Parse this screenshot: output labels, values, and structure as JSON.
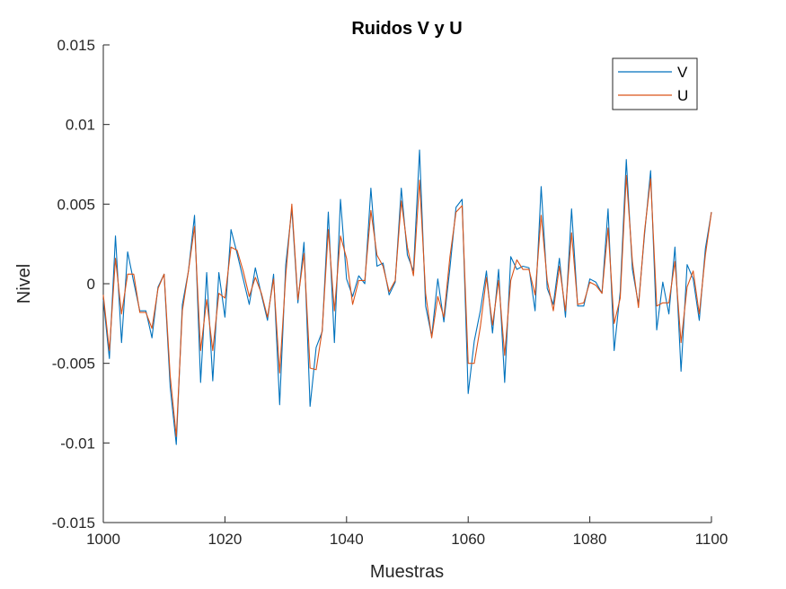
{
  "chart_data": {
    "type": "line",
    "title": "Ruidos V y U",
    "xlabel": "Muestras",
    "ylabel": "Nivel",
    "xlim": [
      1000,
      1100
    ],
    "ylim": [
      -0.015,
      0.015
    ],
    "xticks": [
      1000,
      1020,
      1040,
      1060,
      1080,
      1100
    ],
    "xtick_labels": [
      "1000",
      "1020",
      "1040",
      "1060",
      "1080",
      "1100"
    ],
    "yticks": [
      -0.015,
      -0.01,
      -0.005,
      0,
      0.005,
      0.01,
      0.015
    ],
    "ytick_labels": [
      "-0.015",
      "-0.01",
      "-0.005",
      "0",
      "0.005",
      "0.01",
      "0.015"
    ],
    "grid": false,
    "legend_position": "top-right",
    "x": [
      1000,
      1001,
      1002,
      1003,
      1004,
      1005,
      1006,
      1007,
      1008,
      1009,
      1010,
      1011,
      1012,
      1013,
      1014,
      1015,
      1016,
      1017,
      1018,
      1019,
      1020,
      1021,
      1022,
      1023,
      1024,
      1025,
      1026,
      1027,
      1028,
      1029,
      1030,
      1031,
      1032,
      1033,
      1034,
      1035,
      1036,
      1037,
      1038,
      1039,
      1040,
      1041,
      1042,
      1043,
      1044,
      1045,
      1046,
      1047,
      1048,
      1049,
      1050,
      1051,
      1052,
      1053,
      1054,
      1055,
      1056,
      1057,
      1058,
      1059,
      1060,
      1061,
      1062,
      1063,
      1064,
      1065,
      1066,
      1067,
      1068,
      1069,
      1070,
      1071,
      1072,
      1073,
      1074,
      1075,
      1076,
      1077,
      1078,
      1079,
      1080,
      1081,
      1082,
      1083,
      1084,
      1085,
      1086,
      1087,
      1088,
      1089,
      1090,
      1091,
      1092,
      1093,
      1094,
      1095,
      1096,
      1097,
      1098,
      1099,
      1100
    ],
    "series": [
      {
        "name": "V",
        "color": "#0072BD",
        "values": [
          -0.001,
          -0.0047,
          0.003,
          -0.0037,
          0.002,
          0.0001,
          -0.0017,
          -0.0017,
          -0.0034,
          -0.0002,
          0.0006,
          -0.0065,
          -0.0101,
          -0.0013,
          0.0008,
          0.0043,
          -0.0062,
          0.0007,
          -0.0061,
          0.0007,
          -0.0021,
          0.0034,
          0.0019,
          0.0003,
          -0.0013,
          0.001,
          -0.0007,
          -0.0023,
          0.0006,
          -0.0076,
          0.0012,
          0.0047,
          -0.0012,
          0.0026,
          -0.0077,
          -0.004,
          -0.003,
          0.0045,
          -0.0037,
          0.0053,
          0.0003,
          -0.0008,
          0.0005,
          0.0,
          0.006,
          0.0011,
          0.0013,
          -0.0007,
          0.0001,
          0.006,
          0.0018,
          0.0008,
          0.0084,
          -0.0014,
          -0.0033,
          0.0003,
          -0.0024,
          0.001,
          0.0048,
          0.0053,
          -0.0069,
          -0.0036,
          -0.0017,
          0.0008,
          -0.0031,
          0.0009,
          -0.0062,
          0.0017,
          0.0009,
          0.0011,
          0.001,
          -0.0017,
          0.0061,
          -0.0003,
          -0.0013,
          0.0016,
          -0.0021,
          0.0047,
          -0.0014,
          -0.0014,
          0.0003,
          0.0001,
          -0.0006,
          0.0047,
          -0.0042,
          -0.0005,
          0.0078,
          0.0009,
          -0.0013,
          0.0031,
          0.0071,
          -0.0029,
          0.0001,
          -0.0019,
          0.0023,
          -0.0055,
          0.0012,
          0.0003,
          -0.0023,
          0.0022,
          0.0045
        ]
      },
      {
        "name": "U",
        "color": "#D95319",
        "values": [
          -0.0007,
          -0.0042,
          0.0016,
          -0.0019,
          0.0006,
          0.0006,
          -0.0018,
          -0.0018,
          -0.0028,
          -0.0003,
          0.0006,
          -0.0058,
          -0.0096,
          -0.0017,
          0.0008,
          0.0036,
          -0.0042,
          -0.001,
          -0.0042,
          -0.0006,
          -0.0009,
          0.0023,
          0.0021,
          0.0008,
          -0.0008,
          0.0004,
          -0.0006,
          -0.0021,
          0.0003,
          -0.0056,
          0.0005,
          0.005,
          -0.001,
          0.0019,
          -0.0053,
          -0.0054,
          -0.0029,
          0.0034,
          -0.0017,
          0.003,
          0.0016,
          -0.0013,
          0.0002,
          0.0002,
          0.0046,
          0.0018,
          0.0011,
          -0.0005,
          0.0002,
          0.0052,
          0.0023,
          0.0005,
          0.0065,
          -0.0006,
          -0.0034,
          -0.0008,
          -0.0021,
          0.0017,
          0.0045,
          0.0049,
          -0.005,
          -0.005,
          -0.0027,
          0.0004,
          -0.0026,
          0.0002,
          -0.0045,
          0.0002,
          0.0015,
          0.0009,
          0.0009,
          -0.0007,
          0.0043,
          0.0002,
          -0.0017,
          0.0011,
          -0.0017,
          0.0032,
          -0.0013,
          -0.0012,
          0.0001,
          -0.0001,
          -0.0006,
          0.0035,
          -0.0025,
          -0.0009,
          0.0068,
          0.0014,
          -0.0015,
          0.0033,
          0.0066,
          -0.0014,
          -0.0012,
          -0.0012,
          0.0014,
          -0.0037,
          -0.0002,
          0.0008,
          -0.0019,
          0.0018,
          0.0045
        ]
      }
    ]
  }
}
